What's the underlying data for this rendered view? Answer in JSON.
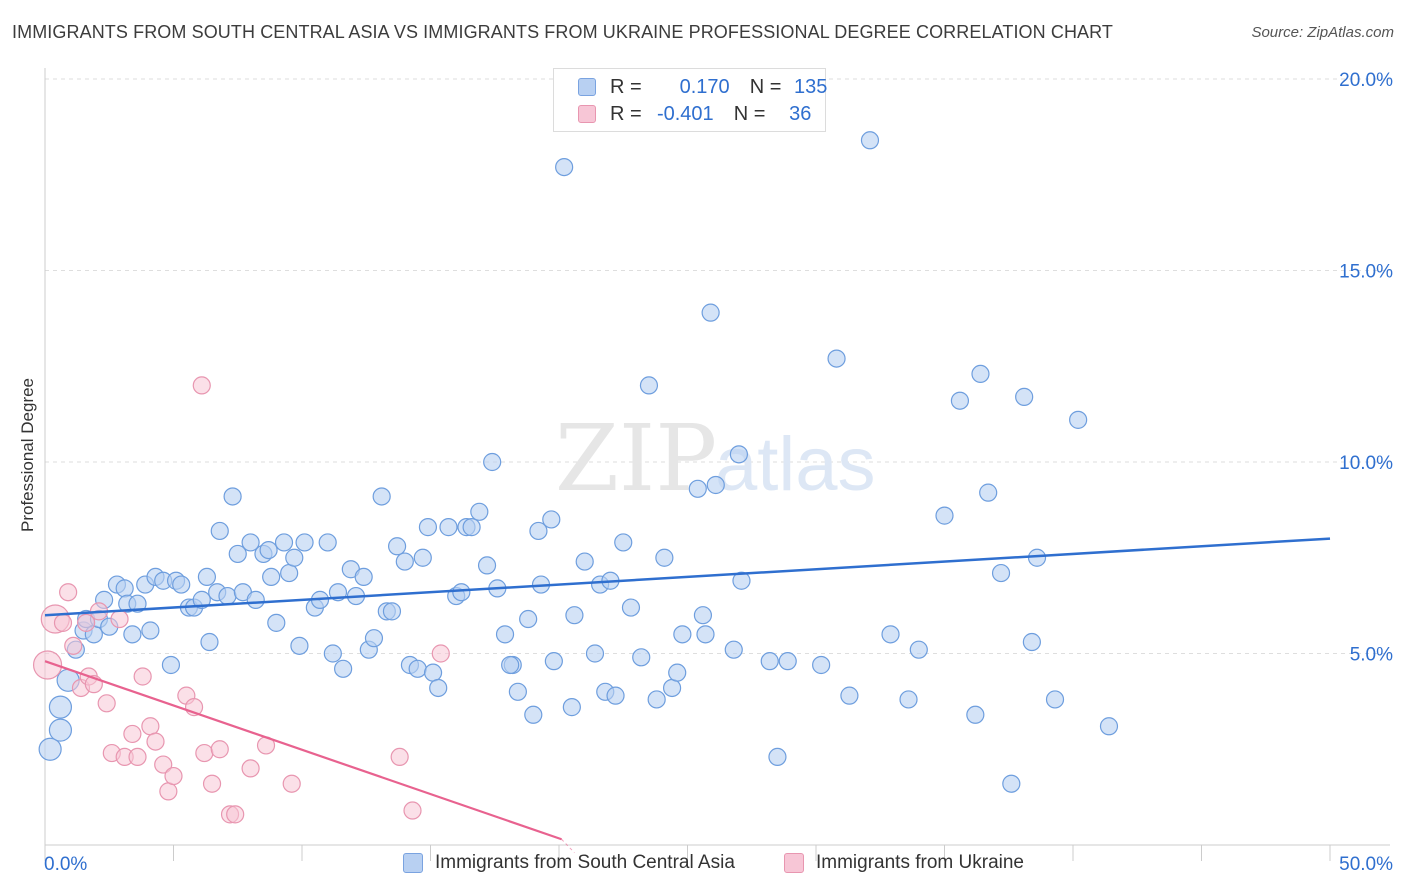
{
  "title": "IMMIGRANTS FROM SOUTH CENTRAL ASIA VS IMMIGRANTS FROM UKRAINE PROFESSIONAL DEGREE CORRELATION CHART",
  "source": "Source: ZipAtlas.com",
  "watermark": {
    "part1": "ZIP",
    "part2": "atlas"
  },
  "legend": {
    "rows": [
      {
        "r_label": "R =",
        "r_value": "0.170",
        "n_label": "N =",
        "n_value": "135"
      },
      {
        "r_label": "R =",
        "r_value": "-0.401",
        "n_label": "N =",
        "n_value": "36"
      }
    ]
  },
  "bottom_legend": {
    "series1": "Immigrants from South Central Asia",
    "series2": "Immigrants from Ukraine"
  },
  "colors": {
    "blue_fill": "#b8d0f2",
    "blue_stroke": "#6e9ede",
    "blue_line": "#2f6fcf",
    "pink_fill": "#f7c6d6",
    "pink_stroke": "#e896b0",
    "pink_line": "#e8628f",
    "tick_text": "#2f6fcf"
  },
  "chart_data": {
    "type": "scatter",
    "ylabel": "Professional Degree",
    "xlim": [
      0,
      50
    ],
    "ylim": [
      0,
      20
    ],
    "x_tick_labels": [
      "0.0%",
      "50.0%"
    ],
    "y_ticks": [
      {
        "value": 5,
        "label": "5.0%"
      },
      {
        "value": 10,
        "label": "10.0%"
      },
      {
        "value": 15,
        "label": "15.0%"
      },
      {
        "value": 20,
        "label": "20.0%"
      }
    ],
    "x_minor_ticks": [
      0,
      5,
      10,
      15,
      20,
      25,
      30,
      35,
      40,
      45,
      50
    ],
    "grid": true,
    "series": [
      {
        "name": "Immigrants from South Central Asia",
        "color": "#6e9ede",
        "trend": {
          "x": [
            0,
            50
          ],
          "y": [
            6.0,
            8.0
          ]
        },
        "points": [
          [
            0.2,
            2.5
          ],
          [
            0.6,
            3.0
          ],
          [
            0.6,
            3.6
          ],
          [
            0.9,
            4.3
          ],
          [
            1.2,
            5.1
          ],
          [
            1.5,
            5.6
          ],
          [
            1.6,
            5.9
          ],
          [
            1.9,
            5.5
          ],
          [
            2.1,
            5.9
          ],
          [
            2.3,
            6.4
          ],
          [
            2.5,
            5.7
          ],
          [
            2.8,
            6.8
          ],
          [
            3.1,
            6.7
          ],
          [
            3.2,
            6.3
          ],
          [
            3.4,
            5.5
          ],
          [
            3.6,
            6.3
          ],
          [
            3.9,
            6.8
          ],
          [
            4.1,
            5.6
          ],
          [
            4.3,
            7.0
          ],
          [
            4.6,
            6.9
          ],
          [
            4.9,
            4.7
          ],
          [
            5.1,
            6.9
          ],
          [
            5.3,
            6.8
          ],
          [
            5.6,
            6.2
          ],
          [
            5.8,
            6.2
          ],
          [
            6.1,
            6.4
          ],
          [
            6.3,
            7.0
          ],
          [
            6.4,
            5.3
          ],
          [
            6.7,
            6.6
          ],
          [
            6.8,
            8.2
          ],
          [
            7.1,
            6.5
          ],
          [
            7.3,
            9.1
          ],
          [
            7.5,
            7.6
          ],
          [
            7.7,
            6.6
          ],
          [
            8.0,
            7.9
          ],
          [
            8.2,
            6.4
          ],
          [
            8.5,
            7.6
          ],
          [
            8.7,
            7.7
          ],
          [
            8.8,
            7.0
          ],
          [
            9.0,
            5.8
          ],
          [
            9.3,
            7.9
          ],
          [
            9.5,
            7.1
          ],
          [
            9.7,
            7.5
          ],
          [
            9.9,
            5.2
          ],
          [
            10.1,
            7.9
          ],
          [
            10.5,
            6.2
          ],
          [
            10.7,
            6.4
          ],
          [
            11.0,
            7.9
          ],
          [
            11.2,
            5.0
          ],
          [
            11.4,
            6.6
          ],
          [
            11.6,
            4.6
          ],
          [
            11.9,
            7.2
          ],
          [
            12.1,
            6.5
          ],
          [
            12.4,
            7.0
          ],
          [
            12.6,
            5.1
          ],
          [
            12.8,
            5.4
          ],
          [
            13.1,
            9.1
          ],
          [
            13.3,
            6.1
          ],
          [
            13.5,
            6.1
          ],
          [
            13.7,
            7.8
          ],
          [
            14.0,
            7.4
          ],
          [
            14.2,
            4.7
          ],
          [
            14.5,
            4.6
          ],
          [
            14.7,
            7.5
          ],
          [
            14.9,
            8.3
          ],
          [
            15.1,
            4.5
          ],
          [
            15.3,
            4.1
          ],
          [
            15.7,
            8.3
          ],
          [
            16.0,
            6.5
          ],
          [
            16.2,
            6.6
          ],
          [
            16.4,
            8.3
          ],
          [
            16.6,
            8.3
          ],
          [
            16.9,
            8.7
          ],
          [
            17.2,
            7.3
          ],
          [
            17.4,
            10.0
          ],
          [
            17.6,
            6.7
          ],
          [
            17.9,
            5.5
          ],
          [
            18.2,
            4.7
          ],
          [
            18.4,
            4.0
          ],
          [
            18.8,
            5.9
          ],
          [
            19.0,
            3.4
          ],
          [
            19.2,
            8.2
          ],
          [
            19.3,
            6.8
          ],
          [
            19.7,
            8.5
          ],
          [
            19.8,
            4.8
          ],
          [
            20.2,
            17.7
          ],
          [
            20.5,
            3.6
          ],
          [
            20.6,
            6.0
          ],
          [
            21.0,
            7.4
          ],
          [
            21.4,
            5.0
          ],
          [
            21.6,
            6.8
          ],
          [
            21.8,
            4.0
          ],
          [
            22.0,
            6.9
          ],
          [
            22.2,
            3.9
          ],
          [
            22.5,
            7.9
          ],
          [
            22.8,
            6.2
          ],
          [
            23.2,
            4.9
          ],
          [
            23.5,
            12.0
          ],
          [
            23.8,
            3.8
          ],
          [
            24.1,
            7.5
          ],
          [
            24.4,
            4.1
          ],
          [
            24.6,
            4.5
          ],
          [
            24.8,
            5.5
          ],
          [
            25.4,
            9.3
          ],
          [
            25.6,
            6.0
          ],
          [
            25.7,
            5.5
          ],
          [
            25.9,
            13.9
          ],
          [
            26.1,
            9.4
          ],
          [
            26.8,
            5.1
          ],
          [
            27.0,
            10.2
          ],
          [
            27.1,
            6.9
          ],
          [
            28.5,
            2.3
          ],
          [
            28.9,
            4.8
          ],
          [
            30.2,
            4.7
          ],
          [
            30.8,
            12.7
          ],
          [
            31.3,
            3.9
          ],
          [
            32.1,
            18.4
          ],
          [
            32.9,
            5.5
          ],
          [
            33.6,
            3.8
          ],
          [
            34.0,
            5.1
          ],
          [
            35.0,
            8.6
          ],
          [
            35.6,
            11.6
          ],
          [
            36.2,
            3.4
          ],
          [
            36.4,
            12.3
          ],
          [
            36.7,
            9.2
          ],
          [
            37.2,
            7.1
          ],
          [
            37.6,
            1.6
          ],
          [
            38.1,
            11.7
          ],
          [
            38.4,
            5.3
          ],
          [
            38.6,
            7.5
          ],
          [
            39.3,
            3.8
          ],
          [
            40.2,
            11.1
          ],
          [
            41.4,
            3.1
          ],
          [
            18.1,
            4.7
          ],
          [
            28.2,
            4.8
          ]
        ]
      },
      {
        "name": "Immigrants from Ukraine",
        "color": "#e896b0",
        "trend": {
          "x": [
            0,
            20.1
          ],
          "y": [
            4.8,
            0.15
          ]
        },
        "points": [
          [
            0.1,
            4.7
          ],
          [
            0.4,
            5.9
          ],
          [
            0.7,
            5.8
          ],
          [
            0.9,
            6.6
          ],
          [
            1.1,
            5.2
          ],
          [
            1.4,
            4.1
          ],
          [
            1.6,
            5.8
          ],
          [
            1.7,
            4.4
          ],
          [
            1.9,
            4.2
          ],
          [
            2.1,
            6.1
          ],
          [
            2.4,
            3.7
          ],
          [
            2.6,
            2.4
          ],
          [
            2.9,
            5.9
          ],
          [
            3.1,
            2.3
          ],
          [
            3.4,
            2.9
          ],
          [
            3.6,
            2.3
          ],
          [
            3.8,
            4.4
          ],
          [
            4.1,
            3.1
          ],
          [
            4.3,
            2.7
          ],
          [
            4.6,
            2.1
          ],
          [
            4.8,
            1.4
          ],
          [
            5.0,
            1.8
          ],
          [
            5.5,
            3.9
          ],
          [
            5.8,
            3.6
          ],
          [
            6.2,
            2.4
          ],
          [
            6.5,
            1.6
          ],
          [
            6.8,
            2.5
          ],
          [
            7.2,
            0.8
          ],
          [
            7.4,
            0.8
          ],
          [
            8.0,
            2.0
          ],
          [
            8.6,
            2.6
          ],
          [
            9.6,
            1.6
          ],
          [
            6.1,
            12.0
          ],
          [
            13.8,
            2.3
          ],
          [
            14.3,
            0.9
          ],
          [
            15.4,
            5.0
          ]
        ]
      }
    ]
  }
}
